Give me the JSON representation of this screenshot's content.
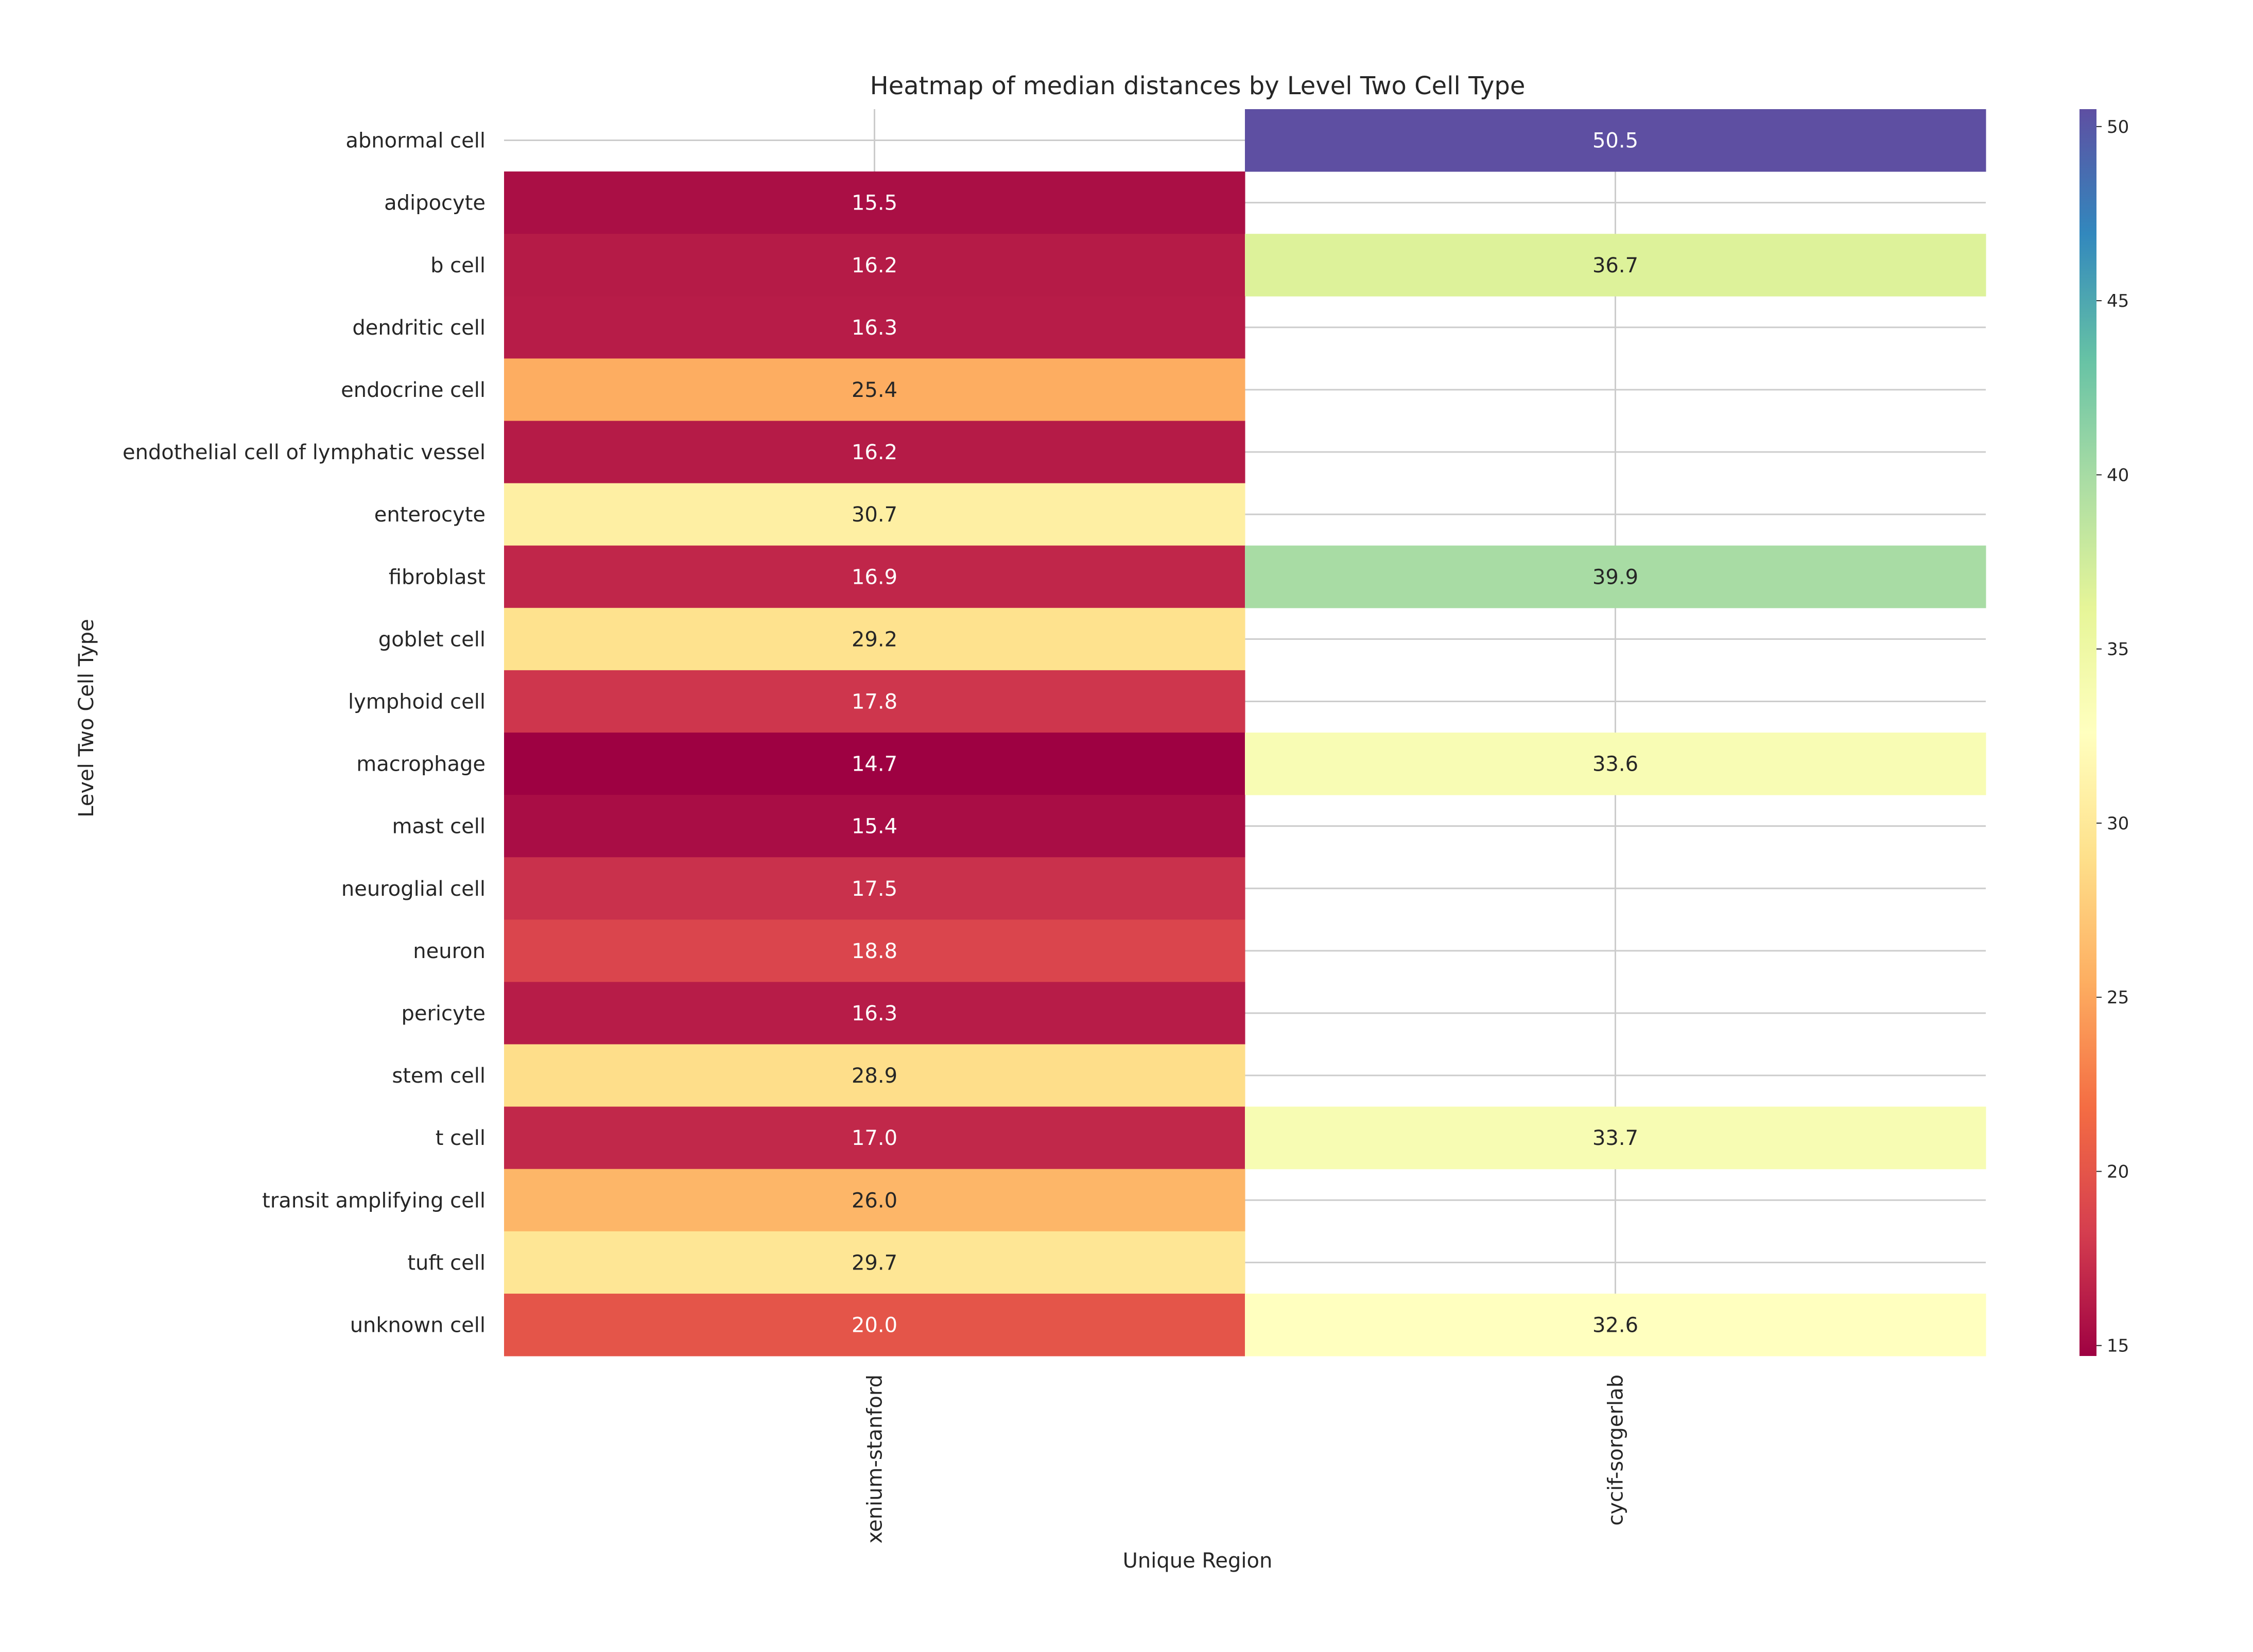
{
  "chart_data": {
    "type": "heatmap",
    "title": "Heatmap of median distances by Level Two Cell Type",
    "xlabel": "Unique Region",
    "ylabel": "Level Two Cell Type",
    "columns": [
      "xenium-stanford",
      "cycif-sorgerlab"
    ],
    "rows": [
      "abnormal cell",
      "adipocyte",
      "b cell",
      "dendritic cell",
      "endocrine cell",
      "endothelial cell of lymphatic vessel",
      "enterocyte",
      "fibroblast",
      "goblet cell",
      "lymphoid cell",
      "macrophage",
      "mast cell",
      "neuroglial cell",
      "neuron",
      "pericyte",
      "stem cell",
      "t cell",
      "transit amplifying cell",
      "tuft cell",
      "unknown cell"
    ],
    "values": [
      [
        null,
        50.5
      ],
      [
        15.5,
        null
      ],
      [
        16.2,
        36.7
      ],
      [
        16.3,
        null
      ],
      [
        25.4,
        null
      ],
      [
        16.2,
        null
      ],
      [
        30.7,
        null
      ],
      [
        16.9,
        39.9
      ],
      [
        29.2,
        null
      ],
      [
        17.8,
        null
      ],
      [
        14.7,
        33.6
      ],
      [
        15.4,
        null
      ],
      [
        17.5,
        null
      ],
      [
        18.8,
        null
      ],
      [
        16.3,
        null
      ],
      [
        28.9,
        null
      ],
      [
        17.0,
        33.7
      ],
      [
        26.0,
        null
      ],
      [
        29.7,
        null
      ],
      [
        20.0,
        32.6
      ]
    ],
    "colorbar": {
      "colormap": "Spectral",
      "range": [
        14.7,
        50.5
      ],
      "ticks": [
        15,
        20,
        25,
        30,
        35,
        40,
        45,
        50
      ]
    },
    "grid": true
  }
}
